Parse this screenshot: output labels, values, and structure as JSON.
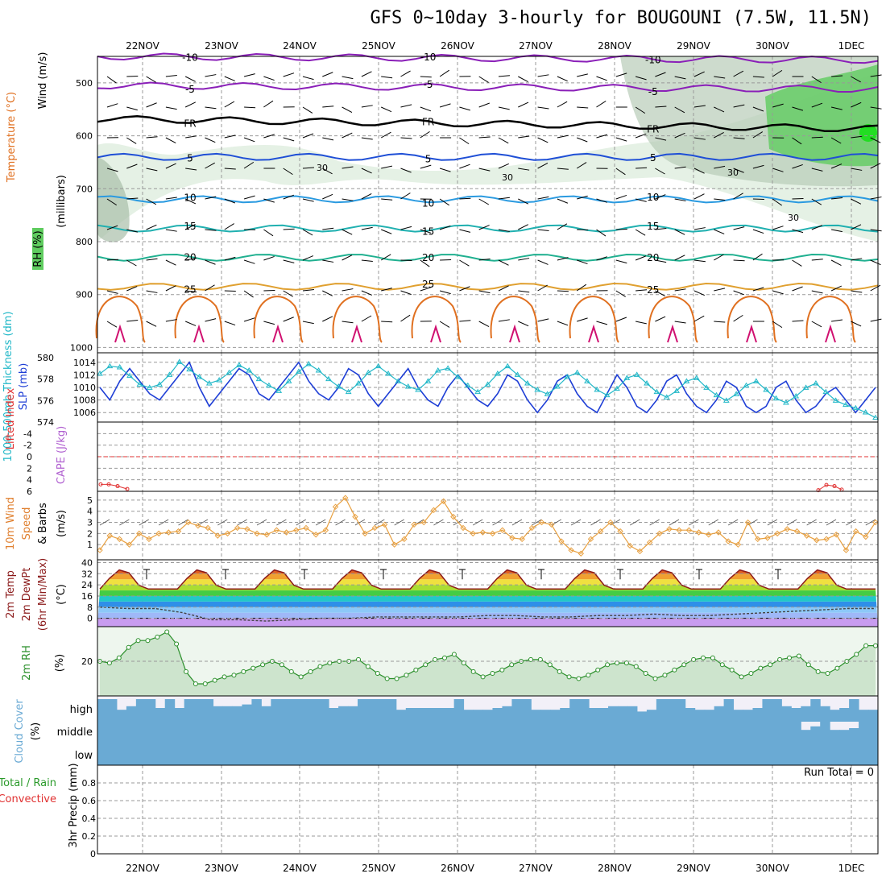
{
  "title": "GFS 0~10day 3-hourly for BOUGOUNI (7.5W, 11.5N)",
  "colors": {
    "slp": "#1f3fd6",
    "thickness": "#22b8c8",
    "lifted": "#e03030",
    "cape": "#b060d0",
    "wind": "#e8a040",
    "temp": "#8b1a1a",
    "dewpt": "#444444",
    "rh": "#2a8f2a",
    "cloud": "#6aaad4",
    "cloudGap": "#f2f0f8",
    "humidity": "#cfe6cf",
    "grid": "#999999"
  },
  "chart_data": {
    "type": "meteogram",
    "dates": [
      "22NOV",
      "23NOV",
      "24NOV",
      "25NOV",
      "26NOV",
      "27NOV",
      "28NOV",
      "29NOV",
      "30NOV",
      "1DEC"
    ],
    "run_total_label": "Run Total = 0",
    "upper_air": {
      "ylabel": "(millibars)",
      "label_wind": "Wind (m/s)",
      "label_temp": "Temperature (°C)",
      "label_rh": "RH (%)",
      "pressure_ticks": [
        500,
        600,
        700,
        800,
        900,
        1000
      ],
      "ylim": [
        450,
        1010
      ],
      "isotherms": [
        {
          "label": "-10",
          "color": "#8a1fb8",
          "base": 450
        },
        {
          "label": "-5",
          "color": "#8a1fb8",
          "base": 505
        },
        {
          "label": "FR",
          "color": "#000000",
          "base": 568
        },
        {
          "label": "5",
          "color": "#1f4fd6",
          "base": 640
        },
        {
          "label": "10",
          "color": "#2a9ae0",
          "base": 720
        },
        {
          "label": "15",
          "color": "#20b0b0",
          "base": 775
        },
        {
          "label": "20",
          "color": "#20b090",
          "base": 830
        },
        {
          "label": "25",
          "color": "#e0a030",
          "base": 885
        }
      ],
      "rh_contour_labels": [
        "30",
        "30",
        "30",
        "30"
      ]
    },
    "slp_thickness": {
      "label_thickness": "1000-500mb Thickness (dm)",
      "label_slp": "SLP (mb)",
      "thickness_ticks": [
        574,
        576,
        578,
        580
      ],
      "slp_ticks": [
        1006,
        1008,
        1010,
        1012,
        1014
      ],
      "slp": [
        1010,
        1008,
        1011,
        1013,
        1011,
        1009,
        1008,
        1010,
        1012,
        1014,
        1010,
        1007,
        1009,
        1011,
        1013,
        1012,
        1009,
        1008,
        1010,
        1012,
        1014,
        1011,
        1009,
        1008,
        1010,
        1013,
        1012,
        1009,
        1007,
        1009,
        1011,
        1013,
        1010,
        1008,
        1007,
        1010,
        1012,
        1010,
        1008,
        1007,
        1009,
        1012,
        1011,
        1008,
        1006,
        1008,
        1011,
        1012,
        1009,
        1007,
        1006,
        1009,
        1012,
        1010,
        1007,
        1006,
        1008,
        1011,
        1012,
        1009,
        1007,
        1006,
        1008,
        1011,
        1010,
        1007,
        1006,
        1007,
        1010,
        1011,
        1008,
        1006,
        1007,
        1009,
        1010,
        1008,
        1006,
        1008,
        1010
      ],
      "thickness": [
        578.5,
        579.2,
        579.1,
        578.3,
        577.5,
        577.2,
        577.5,
        578.4,
        579.6,
        578.9,
        578.2,
        577.6,
        577.9,
        578.6,
        579.3,
        578.8,
        578.0,
        577.4,
        576.9,
        577.8,
        578.7,
        579.4,
        578.8,
        578.0,
        577.3,
        576.8,
        577.6,
        578.6,
        579.2,
        578.5,
        577.8,
        577.3,
        577.0,
        577.8,
        578.8,
        579.0,
        578.2,
        577.4,
        576.8,
        577.5,
        578.5,
        579.2,
        578.4,
        577.6,
        577.0,
        576.6,
        577.3,
        578.2,
        578.6,
        577.8,
        577.0,
        576.5,
        577.1,
        578.1,
        578.4,
        577.6,
        576.8,
        576.3,
        576.9,
        577.8,
        578.1,
        577.2,
        576.5,
        576.0,
        576.6,
        577.4,
        577.8,
        577.0,
        576.2,
        575.8,
        576.4,
        577.2,
        577.6,
        576.8,
        576.0,
        575.6,
        575.3,
        574.9,
        574.4
      ]
    },
    "stability": {
      "label_lifted": "Lifted Index",
      "label_cape": "CAPE (J/kg)",
      "ticks": [
        "-4",
        "-2",
        "0",
        "2",
        "4",
        "6"
      ],
      "lifted_index_start": [
        4.8,
        4.8,
        5.1,
        5.6
      ],
      "lifted_index_end": [
        5.8,
        4.9,
        5.1,
        5.7
      ]
    },
    "wind10m": {
      "label_wind10": "10m Wind",
      "label_speed": "Speed",
      "label_barbs": "& Barbs",
      "unit": "(m/s)",
      "ticks": [
        1,
        2,
        3,
        4,
        5
      ],
      "speed": [
        0.5,
        1.8,
        1.5,
        1.0,
        2.0,
        1.5,
        2.0,
        2.1,
        2.2,
        3.0,
        2.7,
        2.5,
        1.8,
        2.0,
        2.5,
        2.4,
        2.0,
        1.9,
        2.3,
        2.1,
        2.3,
        2.5,
        1.9,
        2.3,
        4.4,
        5.2,
        3.5,
        2.0,
        2.5,
        2.8,
        1.0,
        1.5,
        2.8,
        3.0,
        4.1,
        4.9,
        3.5,
        2.5,
        2.0,
        2.1,
        2.0,
        2.3,
        1.6,
        1.5,
        2.5,
        3.0,
        2.8,
        1.3,
        0.5,
        0.2,
        1.5,
        2.2,
        3.0,
        2.2,
        0.9,
        0.4,
        1.2,
        2.0,
        2.4,
        2.3,
        2.3,
        2.1,
        1.9,
        2.1,
        1.3,
        1.0,
        3.0,
        1.5,
        1.6,
        2.0,
        2.4,
        2.2,
        1.8,
        1.4,
        1.5,
        1.9,
        0.5,
        2.2,
        1.7,
        3.0
      ]
    },
    "temperature": {
      "label_temp": "2m Temp",
      "label_dewpt": "2m DewPt",
      "label_minmax": "(6hr Min/Max)",
      "unit": "(°C)",
      "ticks": [
        0,
        8,
        16,
        24,
        32,
        40
      ],
      "day_max": [
        35,
        35,
        35,
        35,
        35,
        35,
        35,
        35,
        35
      ],
      "night_min": [
        21,
        21,
        21,
        21,
        21,
        21,
        21,
        21,
        21
      ],
      "dewpt": [
        8,
        7,
        7,
        4,
        -1,
        -1,
        -2,
        -1,
        0,
        0,
        1,
        1,
        1,
        1,
        2,
        2,
        1,
        1,
        2,
        2,
        3,
        2,
        2,
        3,
        4,
        5,
        6,
        7,
        7
      ]
    },
    "rh2m": {
      "label": "2m RH",
      "unit": "(%)",
      "ticks": [
        20
      ],
      "values": [
        20,
        19,
        22,
        28,
        32,
        32,
        34,
        37,
        30,
        14,
        7,
        7,
        9,
        11,
        12,
        14,
        16,
        18,
        20,
        18,
        14,
        11,
        14,
        17,
        19,
        20,
        20,
        21,
        17,
        13,
        10,
        10,
        12,
        15,
        18,
        21,
        22,
        24,
        19,
        14,
        11,
        13,
        15,
        18,
        20,
        21,
        21,
        18,
        14,
        11,
        10,
        12,
        15,
        18,
        19,
        19,
        17,
        13,
        10,
        12,
        15,
        18,
        21,
        22,
        22,
        18,
        15,
        11,
        13,
        16,
        18,
        21,
        22,
        23,
        18,
        14,
        13,
        16,
        20,
        24,
        29,
        29
      ]
    },
    "cloud_cover": {
      "label": "Cloud Cover",
      "unit": "(%)",
      "levels": [
        "high",
        "middle",
        "low"
      ],
      "high": [
        1,
        1,
        0.4,
        0.6,
        1,
        1,
        0.5,
        1,
        0.5,
        1,
        1,
        1,
        0.6,
        0.6,
        0.6,
        0.7,
        1,
        0.6,
        1,
        1,
        1,
        1,
        1,
        1,
        0.5,
        0.6,
        0.6,
        1,
        1,
        1,
        1,
        0.4,
        0.5,
        0.5,
        0.5,
        0.5,
        0.5,
        1,
        0.4,
        0.4,
        0.4,
        0.5,
        0.6,
        1,
        1,
        0.4,
        0.4,
        0.4,
        0.5,
        1,
        1,
        0.5,
        0.5,
        0.6,
        0.6,
        0.6,
        0.3,
        0.4,
        1,
        1,
        1,
        0.5,
        0.4,
        0.4,
        0.6,
        1,
        0.4,
        0.4,
        0.5,
        1,
        1,
        0.6,
        0.5,
        0.6,
        1,
        0.6,
        0.4,
        0.5,
        1,
        0.4,
        0.4
      ],
      "middle": [
        1,
        1,
        1,
        1,
        1,
        1,
        1,
        1,
        1,
        1,
        1,
        1,
        1,
        1,
        1,
        1,
        1,
        1,
        1,
        1,
        1,
        1,
        1,
        1,
        1,
        1,
        1,
        1,
        1,
        1,
        1,
        1,
        1,
        1,
        1,
        1,
        1,
        1,
        1,
        1,
        1,
        1,
        1,
        1,
        1,
        1,
        1,
        1,
        1,
        1,
        1,
        1,
        1,
        1,
        1,
        1,
        1,
        1,
        1,
        1,
        1,
        1,
        1,
        1,
        1,
        1,
        1,
        1,
        1,
        1,
        1,
        1,
        1,
        0.4,
        0.6,
        1,
        0.4,
        0.4,
        0.5,
        1,
        1
      ]
    },
    "precip": {
      "label_total": "Total / Rain",
      "label_convective": "Convective",
      "label_3hr": "3hr Precip (mm)",
      "ticks": [
        0,
        0.2,
        0.4,
        0.6,
        0.8
      ],
      "ylim": [
        0,
        1
      ],
      "values": []
    }
  }
}
